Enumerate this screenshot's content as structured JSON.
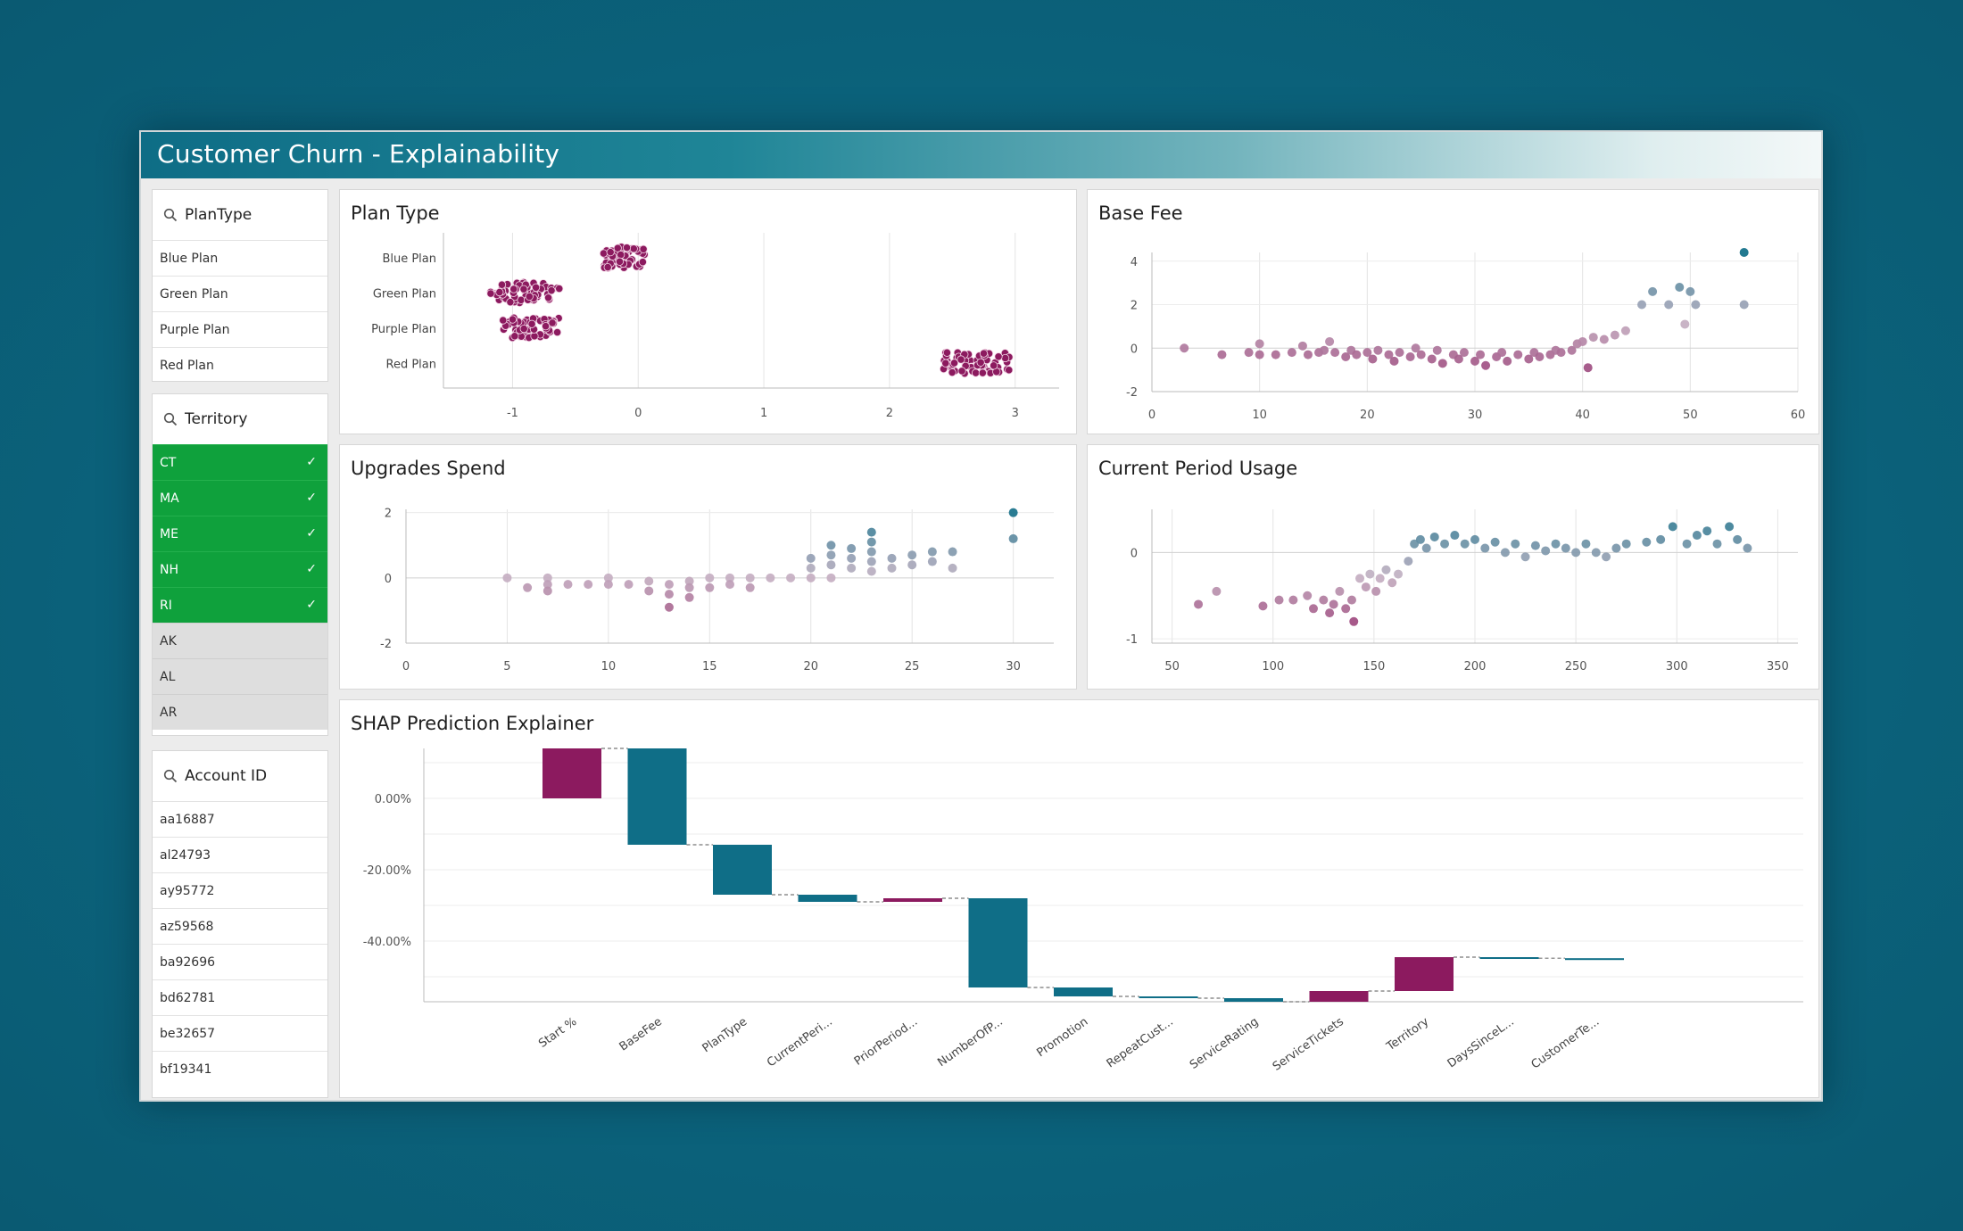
{
  "app": {
    "title": "Customer Churn - Explainability"
  },
  "filters": {
    "plantype": {
      "label": "PlanType",
      "items": [
        "Blue Plan",
        "Green Plan",
        "Purple Plan",
        "Red Plan"
      ]
    },
    "territory": {
      "label": "Territory",
      "selected": [
        "CT",
        "MA",
        "ME",
        "NH",
        "RI"
      ],
      "alternative": [
        "AK",
        "AL",
        "AR"
      ],
      "check": "✓"
    },
    "account": {
      "label": "Account ID",
      "items": [
        "aa16887",
        "al24793",
        "ay95772",
        "az59568",
        "ba92696",
        "bd62781",
        "be32657",
        "bf19341"
      ]
    }
  },
  "colors": {
    "magenta": "#8c1a5f",
    "teal": "#0f6e87",
    "mid": "#c6b3c4",
    "selected": "#0fa13c"
  },
  "chart_data": [
    {
      "id": "plan_type",
      "type": "scatter",
      "title": "Plan Type",
      "categories": [
        "Blue Plan",
        "Green Plan",
        "Purple Plan",
        "Red Plan"
      ],
      "x_ticks": [
        -1,
        0,
        1,
        2,
        3
      ],
      "xlim": [
        -1.55,
        3.35
      ],
      "clusters": [
        {
          "category": "Blue Plan",
          "x_range": [
            -0.28,
            0.05
          ]
        },
        {
          "category": "Green Plan",
          "x_range": [
            -1.18,
            -0.6
          ]
        },
        {
          "category": "Purple Plan",
          "x_range": [
            -1.08,
            -0.62
          ]
        },
        {
          "category": "Red Plan",
          "x_range": [
            2.43,
            2.97
          ]
        }
      ]
    },
    {
      "id": "base_fee",
      "type": "scatter",
      "title": "Base Fee",
      "x_ticks": [
        0,
        10,
        20,
        30,
        40,
        50,
        60
      ],
      "y_ticks": [
        4,
        2,
        0,
        -2
      ],
      "xlim": [
        0,
        60
      ],
      "ylim": [
        -2,
        4.4
      ],
      "points": [
        [
          3,
          0
        ],
        [
          6.5,
          -0.3
        ],
        [
          9,
          -0.2
        ],
        [
          10,
          -0.3
        ],
        [
          10,
          0.2
        ],
        [
          11.5,
          -0.3
        ],
        [
          13,
          -0.2
        ],
        [
          14,
          0.1
        ],
        [
          14.5,
          -0.3
        ],
        [
          15.5,
          -0.2
        ],
        [
          16,
          -0.1
        ],
        [
          16.5,
          0.3
        ],
        [
          17,
          -0.2
        ],
        [
          18,
          -0.4
        ],
        [
          18.5,
          -0.1
        ],
        [
          19,
          -0.3
        ],
        [
          20,
          -0.2
        ],
        [
          20.5,
          -0.5
        ],
        [
          21,
          -0.1
        ],
        [
          22,
          -0.3
        ],
        [
          22.5,
          -0.6
        ],
        [
          23,
          -0.2
        ],
        [
          24,
          -0.4
        ],
        [
          24.5,
          0
        ],
        [
          25,
          -0.3
        ],
        [
          26,
          -0.5
        ],
        [
          26.5,
          -0.1
        ],
        [
          27,
          -0.7
        ],
        [
          28,
          -0.3
        ],
        [
          28.5,
          -0.5
        ],
        [
          29,
          -0.2
        ],
        [
          30,
          -0.6
        ],
        [
          30.5,
          -0.3
        ],
        [
          31,
          -0.8
        ],
        [
          32,
          -0.4
        ],
        [
          32.5,
          -0.2
        ],
        [
          33,
          -0.6
        ],
        [
          34,
          -0.3
        ],
        [
          35,
          -0.5
        ],
        [
          35.5,
          -0.2
        ],
        [
          36,
          -0.4
        ],
        [
          37,
          -0.3
        ],
        [
          37.5,
          -0.1
        ],
        [
          38,
          -0.2
        ],
        [
          39,
          -0.1
        ],
        [
          39.5,
          0.2
        ],
        [
          40,
          0.3
        ],
        [
          40.5,
          -0.9
        ],
        [
          41,
          0.5
        ],
        [
          42,
          0.4
        ],
        [
          43,
          0.6
        ],
        [
          44,
          0.8
        ],
        [
          45.5,
          2
        ],
        [
          46.5,
          2.6
        ],
        [
          48,
          2
        ],
        [
          49,
          2.8
        ],
        [
          49.5,
          1.1
        ],
        [
          50,
          2.6
        ],
        [
          50.5,
          2
        ],
        [
          55,
          4.4
        ],
        [
          55,
          2
        ]
      ]
    },
    {
      "id": "upgrades_spend",
      "type": "scatter",
      "title": "Upgrades Spend",
      "x_ticks": [
        0,
        5,
        10,
        15,
        20,
        25,
        30
      ],
      "y_ticks": [
        2,
        0,
        -2
      ],
      "xlim": [
        0,
        32
      ],
      "ylim": [
        -2,
        2.1
      ],
      "points": [
        [
          5,
          0
        ],
        [
          6,
          -0.3
        ],
        [
          7,
          0
        ],
        [
          7,
          -0.2
        ],
        [
          7,
          -0.4
        ],
        [
          8,
          -0.2
        ],
        [
          9,
          -0.2
        ],
        [
          10,
          0
        ],
        [
          10,
          -0.2
        ],
        [
          11,
          -0.2
        ],
        [
          12,
          -0.1
        ],
        [
          12,
          -0.4
        ],
        [
          13,
          -0.2
        ],
        [
          13,
          -0.5
        ],
        [
          13,
          -0.9
        ],
        [
          14,
          -0.1
        ],
        [
          14,
          -0.3
        ],
        [
          14,
          -0.6
        ],
        [
          15,
          0
        ],
        [
          15,
          -0.3
        ],
        [
          16,
          0
        ],
        [
          16,
          -0.2
        ],
        [
          17,
          0
        ],
        [
          17,
          -0.3
        ],
        [
          18,
          0
        ],
        [
          19,
          0
        ],
        [
          20,
          0
        ],
        [
          20,
          0.3
        ],
        [
          20,
          0.6
        ],
        [
          21,
          0
        ],
        [
          21,
          0.4
        ],
        [
          21,
          0.7
        ],
        [
          21,
          1
        ],
        [
          22,
          0.3
        ],
        [
          22,
          0.6
        ],
        [
          22,
          0.9
        ],
        [
          23,
          0.2
        ],
        [
          23,
          0.5
        ],
        [
          23,
          0.8
        ],
        [
          23,
          1.1
        ],
        [
          23,
          1.4
        ],
        [
          24,
          0.3
        ],
        [
          24,
          0.6
        ],
        [
          25,
          0.4
        ],
        [
          25,
          0.7
        ],
        [
          26,
          0.5
        ],
        [
          26,
          0.8
        ],
        [
          27,
          0.3
        ],
        [
          27,
          0.8
        ],
        [
          30,
          2
        ],
        [
          30,
          1.2
        ]
      ]
    },
    {
      "id": "current_period_usage",
      "type": "scatter",
      "title": "Current Period Usage",
      "x_ticks": [
        50,
        100,
        150,
        200,
        250,
        300,
        350
      ],
      "y_ticks": [
        0,
        -1
      ],
      "xlim": [
        40,
        360
      ],
      "ylim": [
        -1.05,
        0.5
      ],
      "points": [
        [
          63,
          -0.6
        ],
        [
          72,
          -0.45
        ],
        [
          95,
          -0.62
        ],
        [
          103,
          -0.55
        ],
        [
          110,
          -0.55
        ],
        [
          117,
          -0.5
        ],
        [
          120,
          -0.65
        ],
        [
          125,
          -0.55
        ],
        [
          128,
          -0.7
        ],
        [
          130,
          -0.6
        ],
        [
          133,
          -0.45
        ],
        [
          136,
          -0.65
        ],
        [
          139,
          -0.55
        ],
        [
          140,
          -0.8
        ],
        [
          143,
          -0.3
        ],
        [
          146,
          -0.4
        ],
        [
          148,
          -0.25
        ],
        [
          151,
          -0.45
        ],
        [
          153,
          -0.3
        ],
        [
          156,
          -0.2
        ],
        [
          159,
          -0.35
        ],
        [
          162,
          -0.25
        ],
        [
          167,
          -0.1
        ],
        [
          170,
          0.1
        ],
        [
          173,
          0.15
        ],
        [
          176,
          0.05
        ],
        [
          180,
          0.18
        ],
        [
          185,
          0.1
        ],
        [
          190,
          0.2
        ],
        [
          195,
          0.1
        ],
        [
          200,
          0.15
        ],
        [
          205,
          0.05
        ],
        [
          210,
          0.12
        ],
        [
          215,
          0
        ],
        [
          220,
          0.1
        ],
        [
          225,
          -0.05
        ],
        [
          230,
          0.08
        ],
        [
          235,
          0.02
        ],
        [
          240,
          0.1
        ],
        [
          245,
          0.05
        ],
        [
          250,
          0
        ],
        [
          255,
          0.1
        ],
        [
          260,
          0
        ],
        [
          265,
          -0.05
        ],
        [
          270,
          0.05
        ],
        [
          275,
          0.1
        ],
        [
          285,
          0.12
        ],
        [
          292,
          0.15
        ],
        [
          298,
          0.3
        ],
        [
          305,
          0.1
        ],
        [
          310,
          0.2
        ],
        [
          315,
          0.25
        ],
        [
          320,
          0.1
        ],
        [
          326,
          0.3
        ],
        [
          330,
          0.15
        ],
        [
          335,
          0.05
        ]
      ]
    },
    {
      "id": "shap_explainer",
      "type": "waterfall",
      "title": "SHAP Prediction Explainer",
      "y_ticks": [
        "0.00%",
        "-20.00%",
        "-40.00%"
      ],
      "ylim": [
        -57,
        14
      ],
      "categories": [
        "Start %",
        "BaseFee",
        "PlanType",
        "CurrentPeri...",
        "PriorPeriod...",
        "NumberOfP...",
        "Promotion",
        "RepeatCust...",
        "ServiceRating",
        "ServiceTickets",
        "Territory",
        "DaysSinceL...",
        "CustomerTe..."
      ],
      "bars": [
        {
          "start": 0,
          "end": 14,
          "color": "magenta"
        },
        {
          "start": 14,
          "end": -13,
          "color": "teal"
        },
        {
          "start": -13,
          "end": -27,
          "color": "teal"
        },
        {
          "start": -27,
          "end": -29,
          "color": "teal"
        },
        {
          "start": -29,
          "end": -28,
          "color": "magenta"
        },
        {
          "start": -28,
          "end": -53,
          "color": "teal"
        },
        {
          "start": -53,
          "end": -55.5,
          "color": "teal"
        },
        {
          "start": -55.5,
          "end": -56,
          "color": "teal"
        },
        {
          "start": -56,
          "end": -57,
          "color": "teal"
        },
        {
          "start": -57,
          "end": -54,
          "color": "magenta"
        },
        {
          "start": -54,
          "end": -44.5,
          "color": "magenta"
        },
        {
          "start": -44.5,
          "end": -44.8,
          "color": "teal"
        },
        {
          "start": -44.8,
          "end": -45.1,
          "color": "teal"
        }
      ]
    }
  ]
}
